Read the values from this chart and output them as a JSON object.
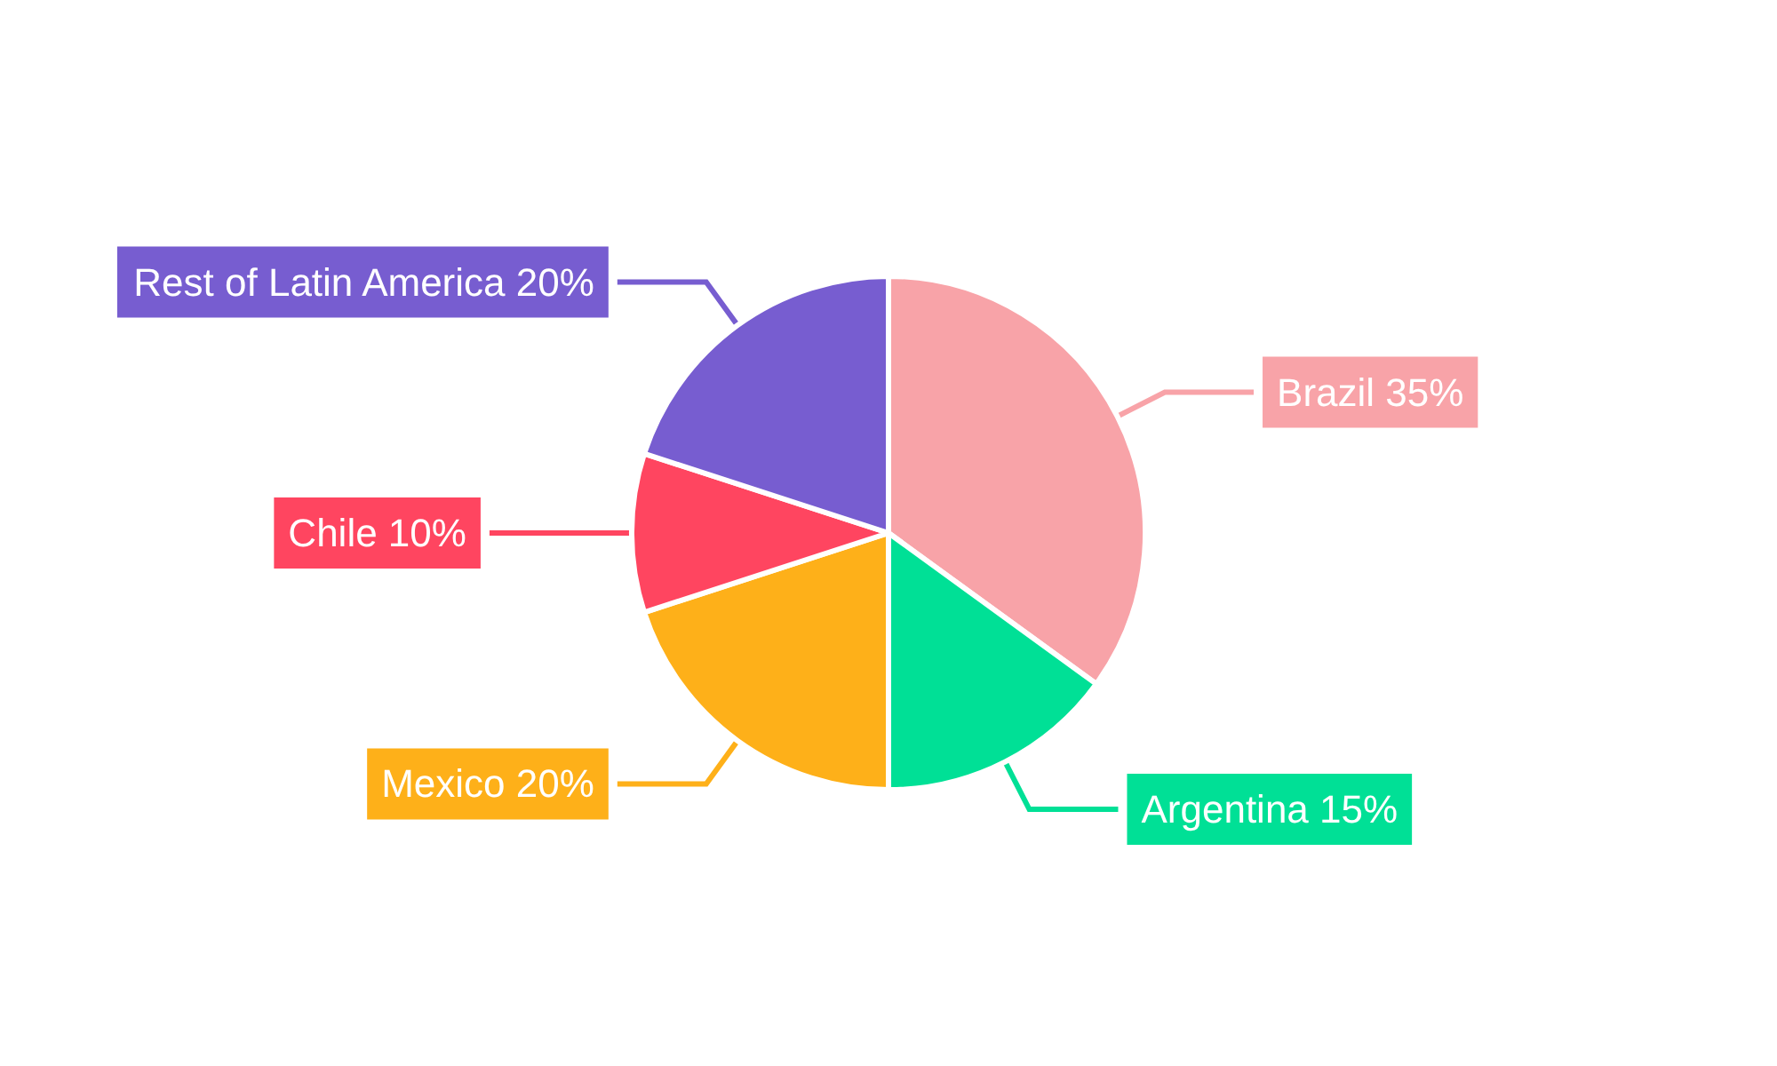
{
  "chart_data": {
    "type": "pie",
    "categories": [
      "Brazil",
      "Argentina",
      "Mexico",
      "Chile",
      "Rest of Latin America"
    ],
    "values": [
      35,
      15,
      20,
      10,
      20
    ],
    "value_labels": [
      "35%",
      "15%",
      "20%",
      "10%",
      "20%"
    ],
    "colors": [
      "#f8a3a8",
      "#00e096",
      "#feb019",
      "#ff4560",
      "#775dd0"
    ],
    "legend": false
  }
}
